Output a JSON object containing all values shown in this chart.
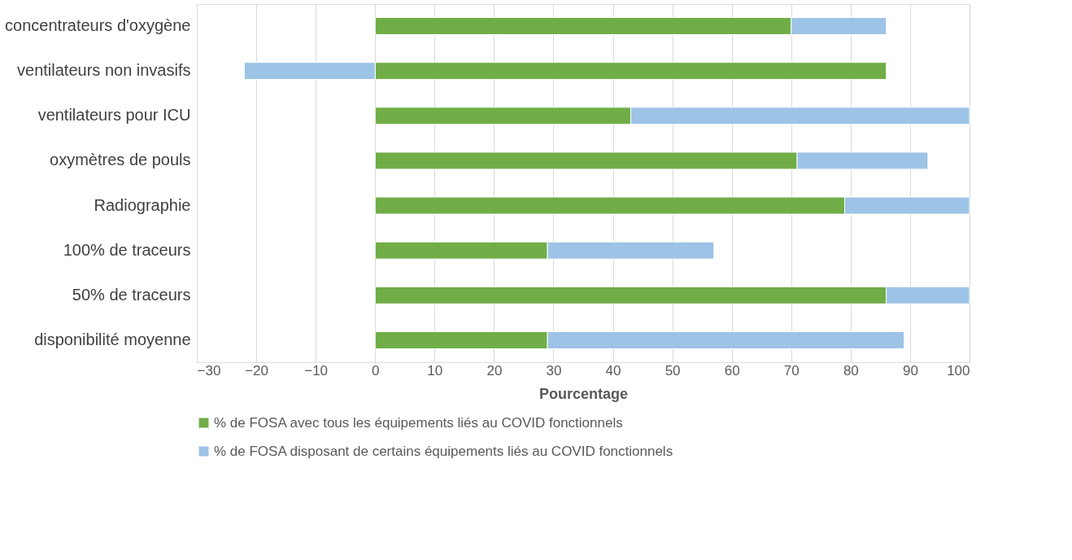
{
  "chart_data": {
    "type": "bar",
    "orientation": "horizontal",
    "stacked": true,
    "xlabel": "Pourcentage",
    "categories": [
      "concentrateurs d'oxygène",
      "ventilateurs non invasifs",
      "ventilateurs pour ICU",
      "oxymètres de pouls",
      "Radiographie",
      "100% de traceurs",
      "50% de traceurs",
      "disponibilité moyenne"
    ],
    "series": [
      {
        "name": "% de FOSA avec tous les équipements liés au COVID fonctionnels",
        "color": "#70ad47",
        "values": [
          70,
          86,
          43,
          71,
          79,
          29,
          86,
          29
        ]
      },
      {
        "name": "% de FOSA disposant de certains équipements liés au COVID fonctionnels",
        "color": "#9dc3e6",
        "values": [
          16,
          -22,
          57,
          22,
          21,
          28,
          14,
          60
        ]
      }
    ],
    "xlim": [
      -30,
      100
    ],
    "xticks": [
      -30,
      -20,
      -10,
      0,
      10,
      20,
      30,
      40,
      50,
      60,
      70,
      80,
      90,
      100
    ],
    "grid": "x",
    "legend": "bottom"
  }
}
